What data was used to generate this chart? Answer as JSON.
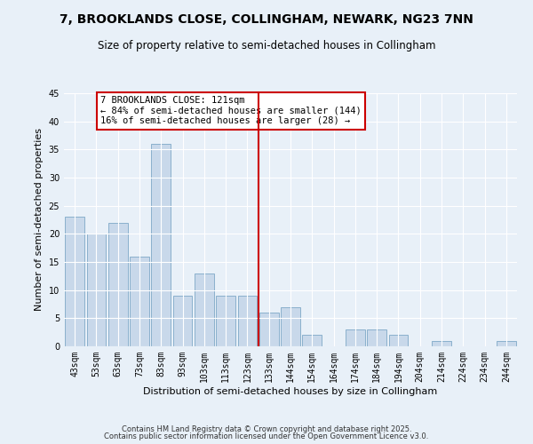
{
  "title": "7, BROOKLANDS CLOSE, COLLINGHAM, NEWARK, NG23 7NN",
  "subtitle": "Size of property relative to semi-detached houses in Collingham",
  "xlabel": "Distribution of semi-detached houses by size in Collingham",
  "ylabel": "Number of semi-detached properties",
  "bar_labels": [
    "43sqm",
    "53sqm",
    "63sqm",
    "73sqm",
    "83sqm",
    "93sqm",
    "103sqm",
    "113sqm",
    "123sqm",
    "133sqm",
    "144sqm",
    "154sqm",
    "164sqm",
    "174sqm",
    "184sqm",
    "194sqm",
    "204sqm",
    "214sqm",
    "224sqm",
    "234sqm",
    "244sqm"
  ],
  "bar_values": [
    23,
    20,
    22,
    16,
    36,
    9,
    13,
    9,
    9,
    6,
    7,
    2,
    0,
    3,
    3,
    2,
    0,
    1,
    0,
    0,
    1
  ],
  "bar_color": "#c8d8ea",
  "bar_edge_color": "#8ab0cc",
  "vline_x": 8.5,
  "vline_color": "#cc0000",
  "annotation_title": "7 BROOKLANDS CLOSE: 121sqm",
  "annotation_line1": "← 84% of semi-detached houses are smaller (144)",
  "annotation_line2": "16% of semi-detached houses are larger (28) →",
  "annotation_box_color": "#ffffff",
  "annotation_box_edge": "#cc0000",
  "ylim": [
    0,
    45
  ],
  "yticks": [
    0,
    5,
    10,
    15,
    20,
    25,
    30,
    35,
    40,
    45
  ],
  "bg_color": "#e8f0f8",
  "footer1": "Contains HM Land Registry data © Crown copyright and database right 2025.",
  "footer2": "Contains public sector information licensed under the Open Government Licence v3.0.",
  "title_fontsize": 10,
  "subtitle_fontsize": 8.5,
  "axis_label_fontsize": 8,
  "tick_fontsize": 7,
  "annotation_fontsize": 7.5,
  "footer_fontsize": 6
}
